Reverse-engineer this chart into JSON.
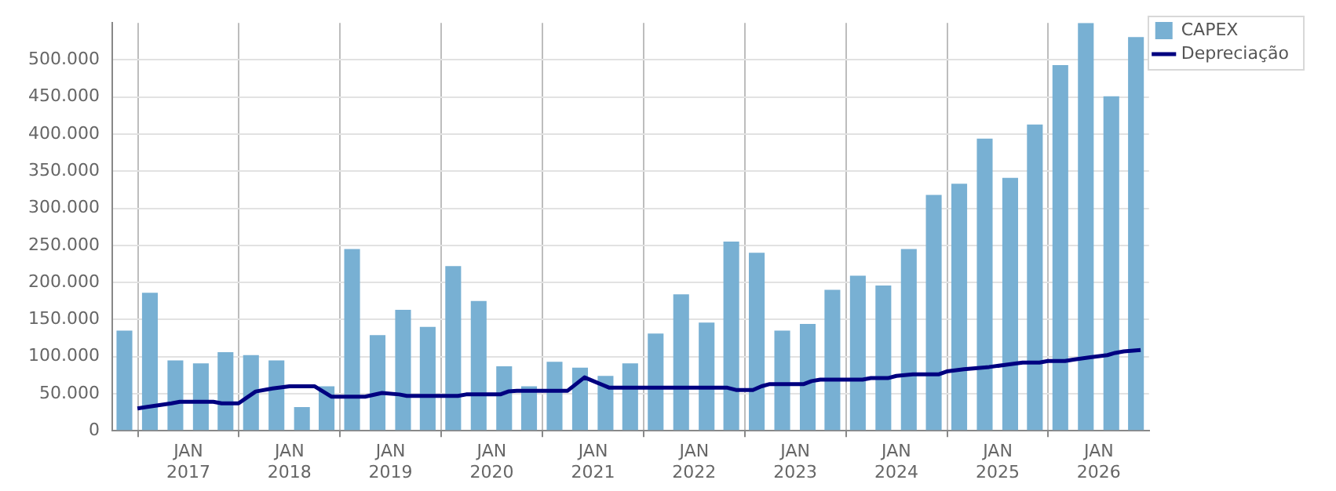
{
  "chart_data": {
    "type": "bar",
    "x": [
      "2016-05-15",
      "2016-08-15",
      "2016-11-15",
      "2017-02-15",
      "2017-05-15",
      "2017-08-15",
      "2017-11-15",
      "2018-02-15",
      "2018-05-15",
      "2018-08-15",
      "2018-11-15",
      "2019-02-15",
      "2019-05-15",
      "2019-08-15",
      "2019-11-15",
      "2020-02-15",
      "2020-05-15",
      "2020-08-15",
      "2020-11-15",
      "2021-02-15",
      "2021-05-15",
      "2021-08-15",
      "2021-11-15",
      "2022-02-15",
      "2022-05-15",
      "2022-08-15",
      "2022-11-15",
      "2023-02-15",
      "2023-05-15",
      "2023-08-15",
      "2023-11-15",
      "2024-02-15",
      "2024-05-15",
      "2024-08-15",
      "2024-11-15",
      "2025-02-15",
      "2025-05-15",
      "2025-08-15",
      "2025-11-15",
      "2026-02-15",
      "2026-05-15"
    ],
    "series": [
      {
        "name": "CAPEX",
        "color": "#78b0d3",
        "values": [
          135000,
          186000,
          95000,
          91000,
          106000,
          102000,
          95000,
          32000,
          60000,
          245000,
          129000,
          163000,
          140000,
          222000,
          175000,
          87000,
          60000,
          93000,
          85000,
          74000,
          91000,
          131000,
          184000,
          146000,
          255000,
          240000,
          135000,
          144000,
          190000,
          209000,
          196000,
          245000,
          318000,
          333000,
          394000,
          341000,
          413000,
          493000,
          550000,
          451000,
          531000
        ]
      },
      {
        "name": "Depreciação",
        "type": "line",
        "color": "#000080",
        "x": [
          "2016-07",
          "2016-08",
          "2016-11",
          "2016-12",
          "2017-04",
          "2017-05",
          "2017-07",
          "2017-09",
          "2017-11",
          "2018-01",
          "2018-04",
          "2018-06",
          "2018-10",
          "2018-12",
          "2019-02",
          "2019-03",
          "2019-09",
          "2019-10",
          "2020-02",
          "2020-03",
          "2020-04",
          "2020-10",
          "2020-12",
          "2021-03",
          "2022-05",
          "2022-06",
          "2022-08",
          "2022-09",
          "2022-10",
          "2023-02",
          "2023-03",
          "2023-04",
          "2023-09",
          "2023-10",
          "2023-12",
          "2024-01",
          "2024-03",
          "2024-06",
          "2024-07",
          "2024-09",
          "2024-12",
          "2025-02",
          "2025-04",
          "2025-06",
          "2025-07",
          "2025-09",
          "2025-10",
          "2025-12",
          "2026-02",
          "2026-03",
          "2026-04",
          "2026-06"
        ],
        "values": [
          30000,
          32000,
          37000,
          39000,
          39000,
          37000,
          37000,
          53000,
          57000,
          60000,
          60000,
          46000,
          46000,
          51000,
          49000,
          47000,
          47000,
          49000,
          49000,
          53000,
          54000,
          54000,
          72000,
          58000,
          58000,
          55000,
          55000,
          60000,
          63000,
          63000,
          67000,
          69000,
          69000,
          71000,
          71000,
          74000,
          76000,
          76000,
          80000,
          83000,
          86000,
          89000,
          92000,
          92000,
          94000,
          94000,
          96000,
          99000,
          102000,
          105000,
          107000,
          109000
        ]
      }
    ],
    "xlim": [
      "2016-04-01",
      "2026-07-01"
    ],
    "xticks": [
      {
        "value": "2017-01-01",
        "label": "JAN 2017"
      },
      {
        "value": "2018-01-01",
        "label": "JAN 2018"
      },
      {
        "value": "2019-01-01",
        "label": "JAN 2019"
      },
      {
        "value": "2020-01-01",
        "label": "JAN 2020"
      },
      {
        "value": "2021-01-01",
        "label": "JAN 2021"
      },
      {
        "value": "2022-01-01",
        "label": "JAN 2022"
      },
      {
        "value": "2023-01-01",
        "label": "JAN 2023"
      },
      {
        "value": "2024-01-01",
        "label": "JAN 2024"
      },
      {
        "value": "2025-01-01",
        "label": "JAN 2025"
      },
      {
        "value": "2026-01-01",
        "label": "JAN 2026"
      }
    ],
    "ylim": [
      0,
      550000
    ],
    "yticks": [
      0,
      {
        "value": 50000,
        "label": "50.000"
      },
      {
        "value": 100000,
        "label": "100.000"
      },
      {
        "value": 150000,
        "label": "150.000"
      },
      {
        "value": 200000,
        "label": "200.000"
      },
      {
        "value": 250000,
        "label": "250.000"
      },
      {
        "value": 300000,
        "label": "300.000"
      },
      {
        "value": 350000,
        "label": "350.000"
      },
      {
        "value": 400000,
        "label": "400.000"
      },
      {
        "value": 450000,
        "label": "450.000"
      },
      {
        "value": 500000,
        "label": "500.000"
      }
    ],
    "grid": true,
    "legend": "top right",
    "marker": "none",
    "line_style": "solid"
  }
}
